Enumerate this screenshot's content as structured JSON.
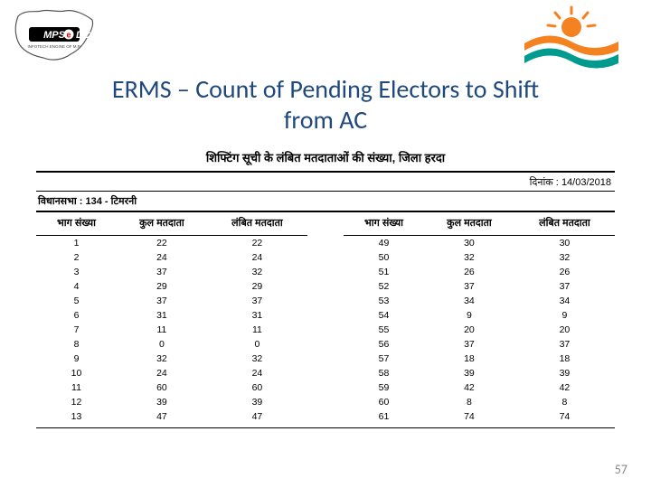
{
  "title_line1": "ERMS – Count of Pending Electors to Shift",
  "title_line2": "from AC",
  "report": {
    "heading": "शिफ्टिंग सूची के लंबित मतदाताओं की संख्या, जिला हरदा",
    "date_label": "दिनांक :",
    "date_value": "14/03/2018",
    "ac_label": "विधानसभा :",
    "ac_value": "134 - टिमरनी",
    "columns": [
      "भाग संख्या",
      "कुल मतदाता",
      "लंबित मतदाता"
    ],
    "rows_left": [
      [
        "1",
        "22",
        "22"
      ],
      [
        "2",
        "24",
        "24"
      ],
      [
        "3",
        "37",
        "32"
      ],
      [
        "4",
        "29",
        "29"
      ],
      [
        "5",
        "37",
        "37"
      ],
      [
        "6",
        "31",
        "31"
      ],
      [
        "7",
        "11",
        "11"
      ],
      [
        "8",
        "0",
        "0"
      ],
      [
        "9",
        "32",
        "32"
      ],
      [
        "10",
        "24",
        "24"
      ],
      [
        "11",
        "60",
        "60"
      ],
      [
        "12",
        "39",
        "39"
      ],
      [
        "13",
        "47",
        "47"
      ]
    ],
    "rows_right": [
      [
        "49",
        "30",
        "30"
      ],
      [
        "50",
        "32",
        "32"
      ],
      [
        "51",
        "26",
        "26"
      ],
      [
        "52",
        "37",
        "37"
      ],
      [
        "53",
        "34",
        "34"
      ],
      [
        "54",
        "9",
        "9"
      ],
      [
        "55",
        "20",
        "20"
      ],
      [
        "56",
        "37",
        "37"
      ],
      [
        "57",
        "18",
        "18"
      ],
      [
        "58",
        "39",
        "39"
      ],
      [
        "59",
        "42",
        "42"
      ],
      [
        "60",
        "8",
        "8"
      ],
      [
        "61",
        "74",
        "74"
      ]
    ]
  },
  "page_number": "57",
  "logos": {
    "left_name": "MPSeDC",
    "right_name": "sunrise-logo"
  },
  "colors": {
    "title": "#1f497d",
    "sun_orange": "#f58220",
    "wave_green": "#009a8e",
    "text": "#000000",
    "page_num": "#888888"
  }
}
